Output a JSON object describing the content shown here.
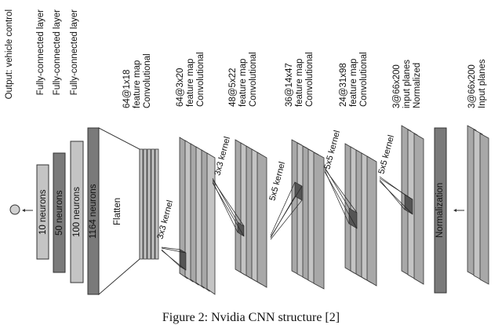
{
  "labels": {
    "output": "Output: vehicle control",
    "fc1": "Fully-connected layer",
    "fc2": "Fully-connected layer",
    "fc3": "Fully-connected layer",
    "conv5": [
      "Convolutional",
      "feature map",
      "64@1x18"
    ],
    "conv4": [
      "Convolutional",
      "feature map",
      "64@3x20"
    ],
    "conv3": [
      "Convolutional",
      "feature map",
      "48@5x22"
    ],
    "conv2": [
      "Convolutional",
      "feature map",
      "36@14x47"
    ],
    "conv1": [
      "Convolutional",
      "feature map",
      "24@31x98"
    ],
    "normalized": [
      "Normalized",
      "input planes",
      "3@66x200"
    ],
    "input": [
      "Input planes",
      "3@66x200"
    ]
  },
  "blocks": {
    "n10": "10 neurons",
    "n50": "50 neurons",
    "n100": "100 neurons",
    "n1164": "1164 neurons",
    "flatten": "Flatten",
    "normalization": "Normalization"
  },
  "kernels": {
    "k1": "3x3 kernel",
    "k2": "3x3 kernel",
    "k3": "5x5 kernel",
    "k4": "5x5 kernel",
    "k5": "5x5 kernel"
  },
  "caption": "Figure 2: Nvidia CNN structure [2]",
  "colors": {
    "light": "#c4c4c4",
    "mid": "#a8a8a8",
    "dark": "#7a7a7a",
    "outline": "#333333"
  }
}
